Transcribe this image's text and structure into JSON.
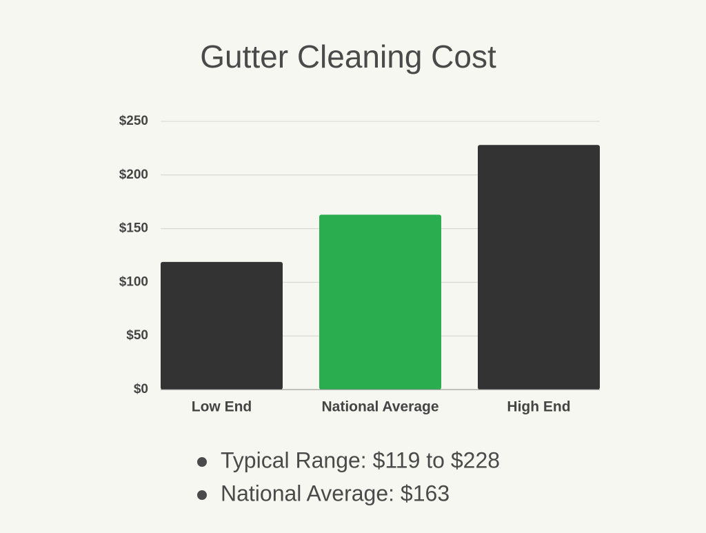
{
  "chart_data": {
    "type": "bar",
    "title": "Gutter Cleaning Cost",
    "categories": [
      "Low End",
      "National Average",
      "High End"
    ],
    "values": [
      119,
      163,
      228
    ],
    "colors": [
      "#333333",
      "#2aad4f",
      "#333333"
    ],
    "ylim": [
      0,
      250
    ],
    "yticks": [
      {
        "value": 0,
        "label": "$0"
      },
      {
        "value": 50,
        "label": "$50"
      },
      {
        "value": 100,
        "label": "$100"
      },
      {
        "value": 150,
        "label": "$150"
      },
      {
        "value": 200,
        "label": "$200"
      },
      {
        "value": 250,
        "label": "$250"
      }
    ],
    "grid": true,
    "notes": [
      "Typical Range: $119 to $228",
      "National Average: $163"
    ]
  }
}
